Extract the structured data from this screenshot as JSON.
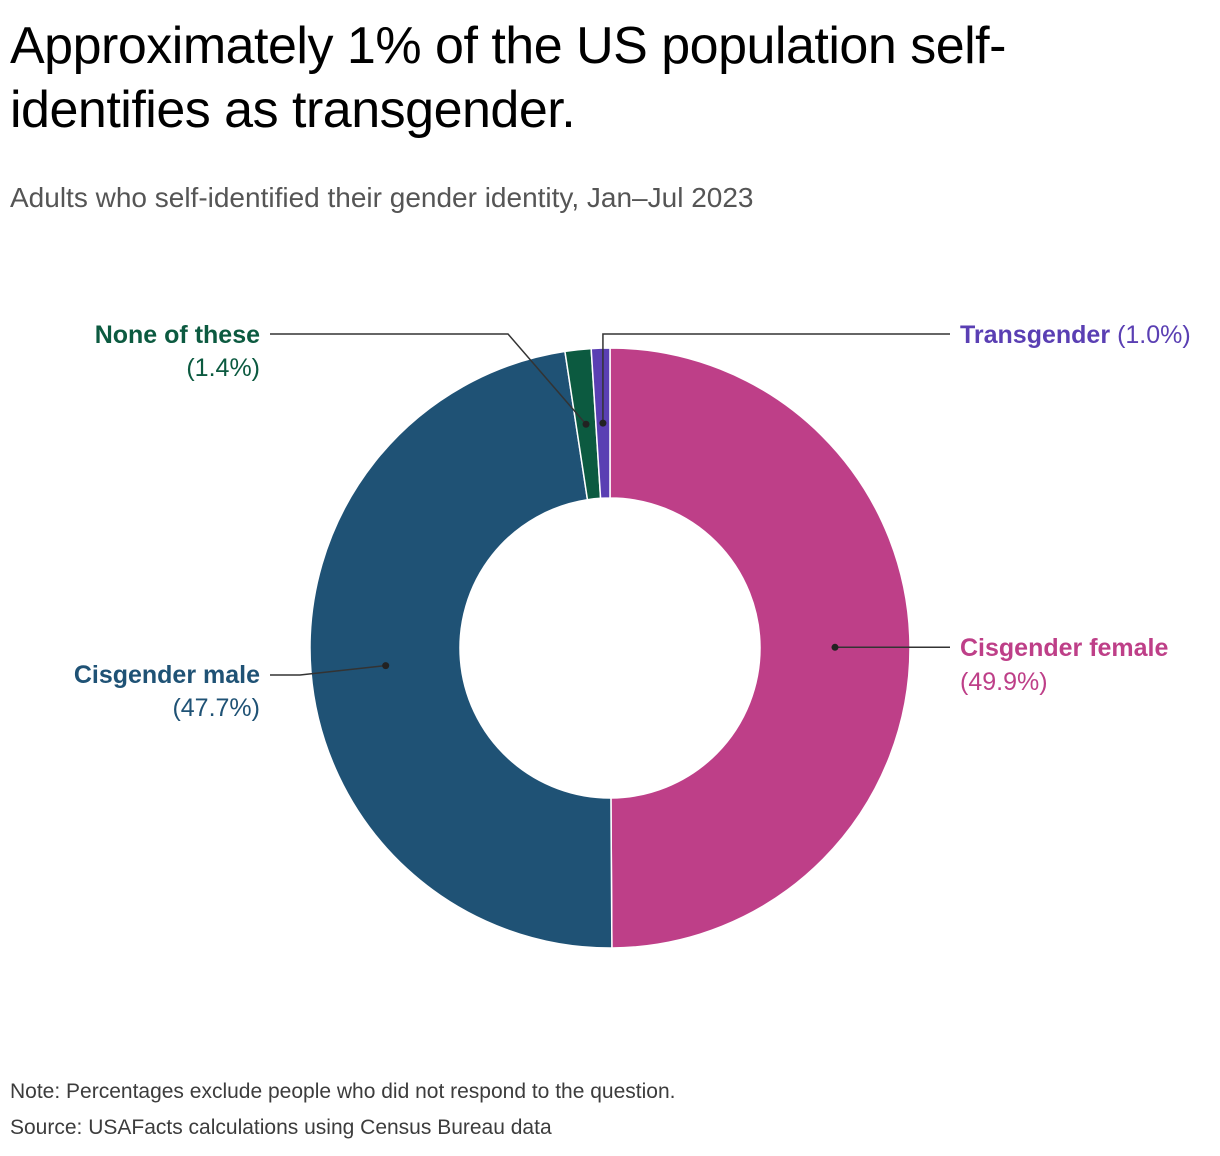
{
  "header": {
    "title": "Approximately 1% of the US population self-identifies as transgender.",
    "subtitle": "Adults who self-identified their gender identity, Jan–Jul 2023"
  },
  "chart_data": {
    "type": "pie",
    "variant": "donut",
    "slices": [
      {
        "name": "Cisgender female",
        "value": 49.9,
        "label": "(49.9%)",
        "color": "#be3f88",
        "side": "right"
      },
      {
        "name": "Cisgender male",
        "value": 47.7,
        "label": "(47.7%)",
        "color": "#1f5275",
        "side": "left"
      },
      {
        "name": "None of these",
        "value": 1.4,
        "label": "(1.4%)",
        "color": "#0c5a40",
        "side": "left"
      },
      {
        "name": "Transgender",
        "value": 1.0,
        "label": "(1.0%)",
        "color": "#5a3fb3",
        "side": "right"
      }
    ]
  },
  "footer": {
    "note": "Note: Percentages exclude people who did not respond to the question.",
    "source": "Source: USAFacts calculations using Census Bureau data"
  }
}
